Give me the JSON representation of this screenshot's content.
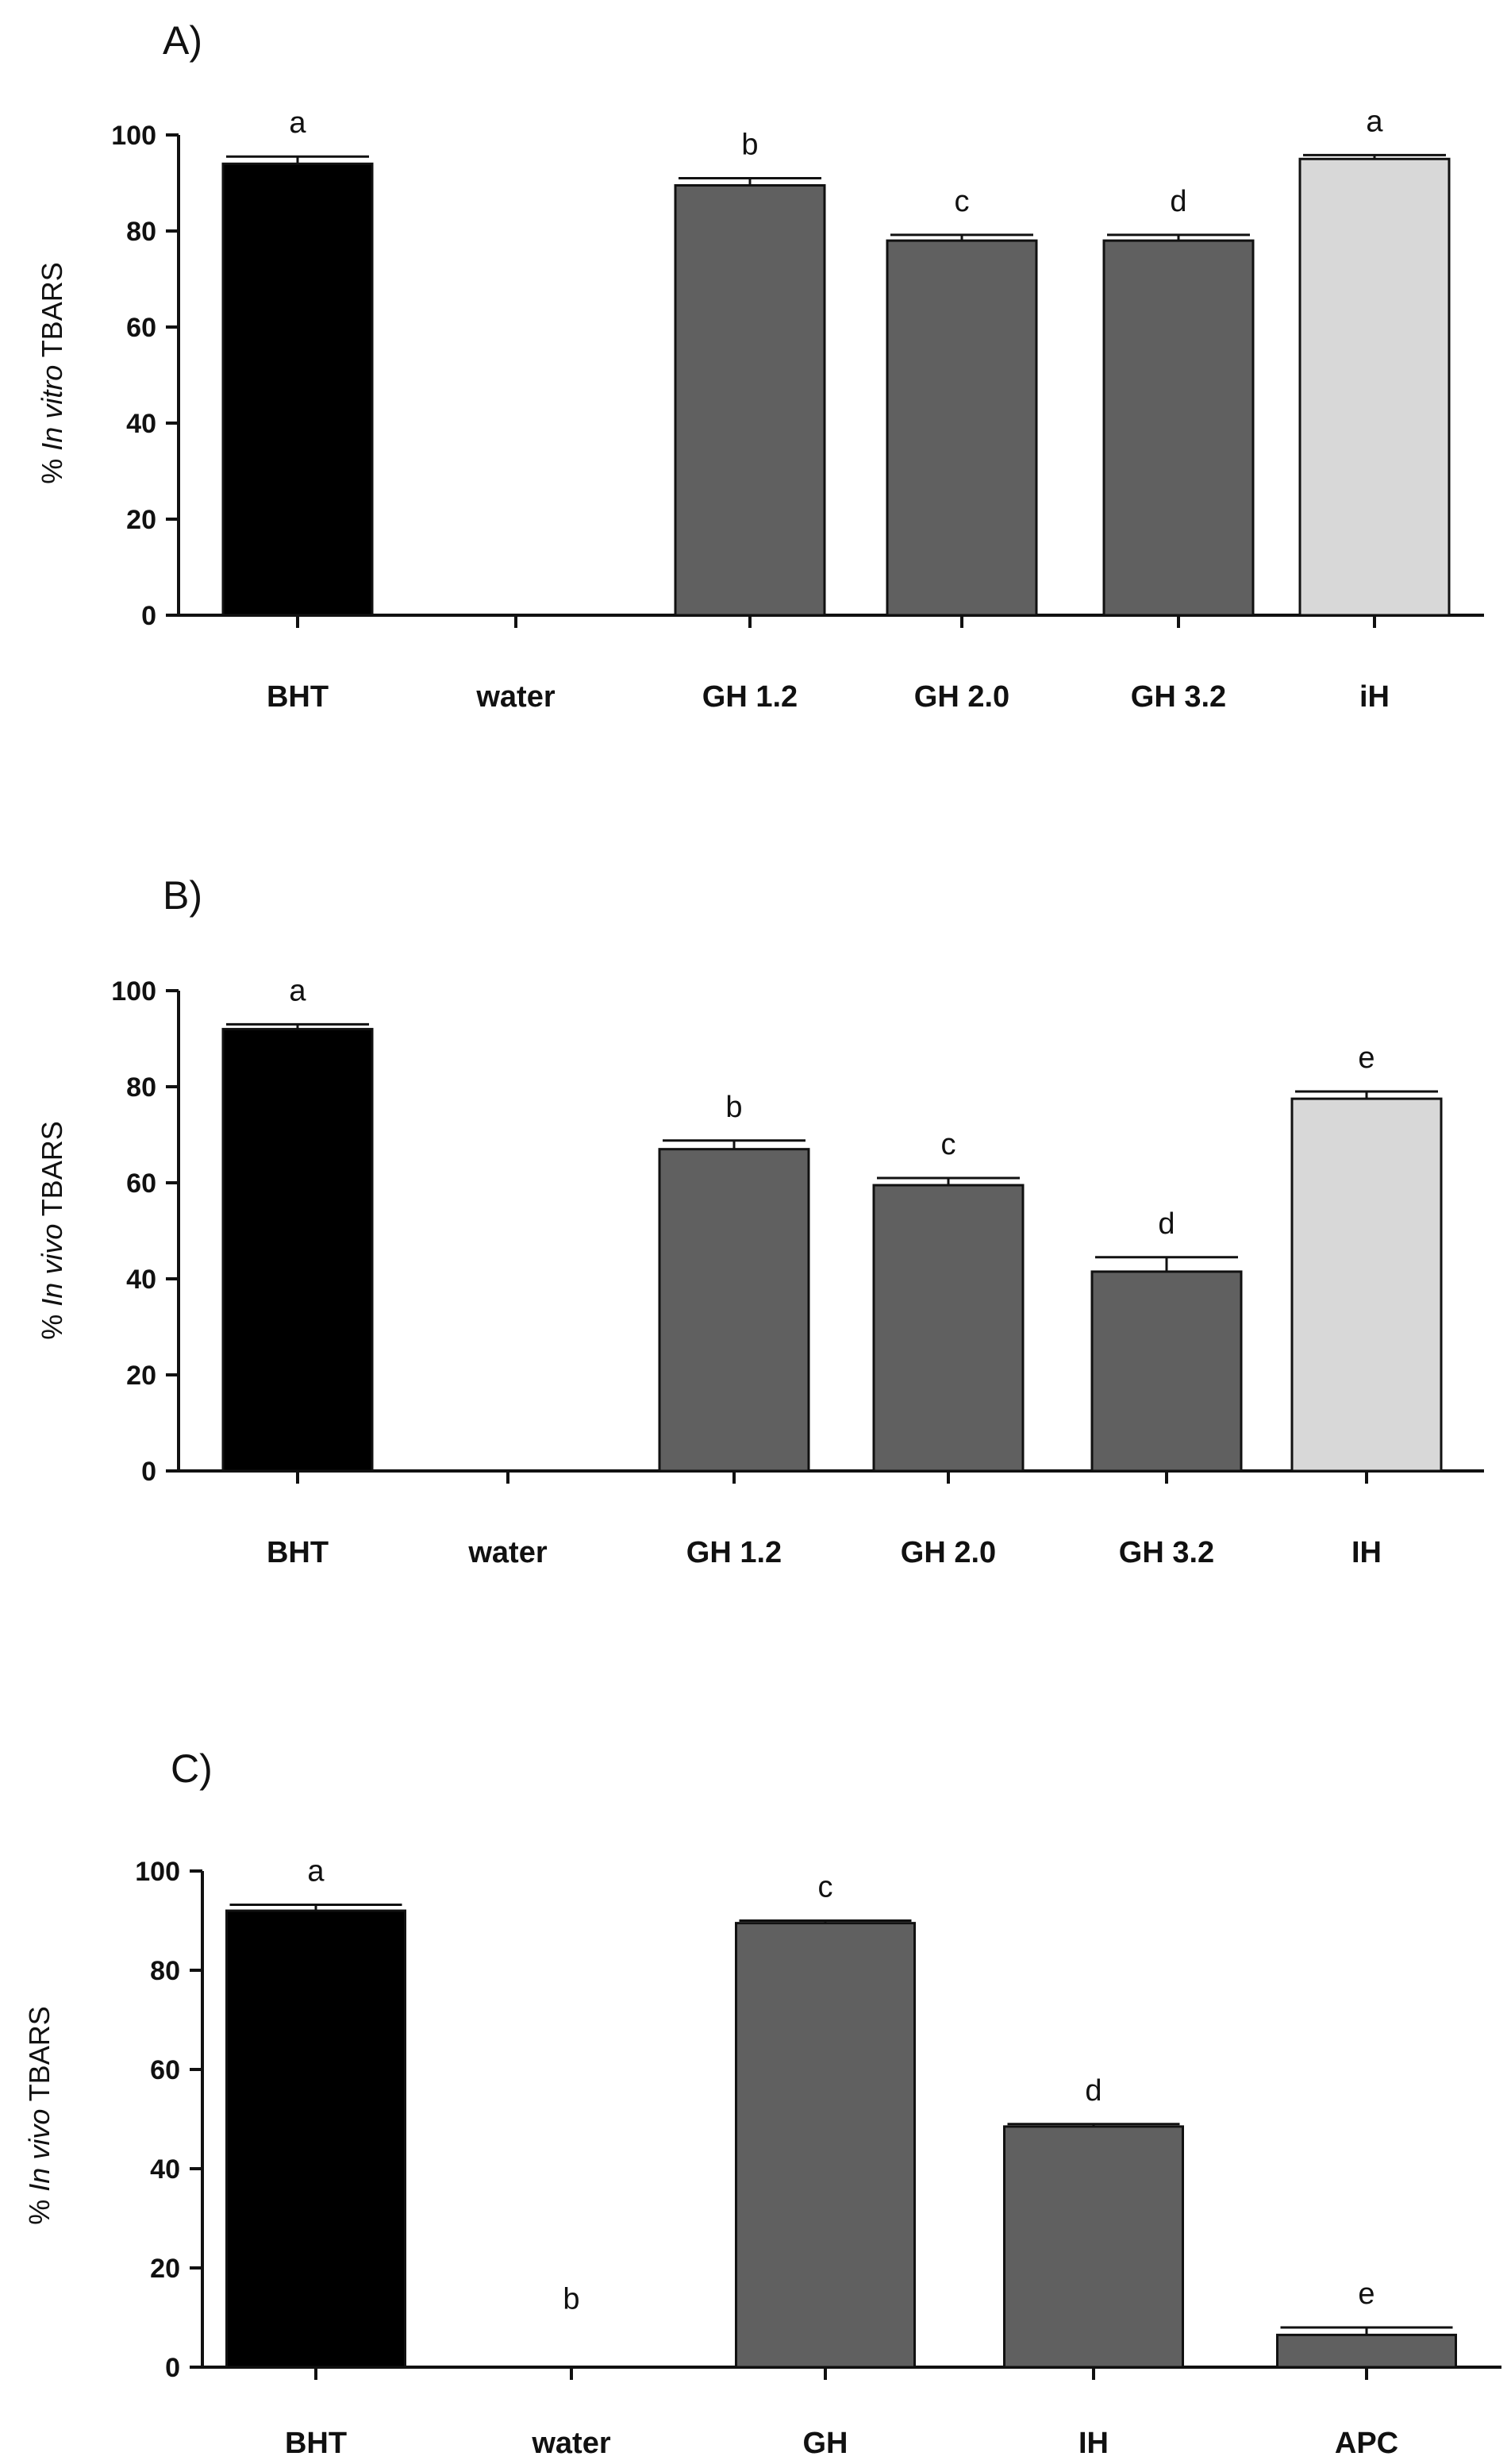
{
  "chart_data": [
    {
      "panel": "A)",
      "type": "bar",
      "categories": [
        "BHT",
        "water",
        "GH 1.2",
        "GH 2.0",
        "GH 3.2",
        "iH"
      ],
      "values": [
        94,
        0,
        89.5,
        78,
        78,
        95
      ],
      "errors": [
        1.5,
        0,
        1.5,
        1.2,
        1.2,
        0.8
      ],
      "significance": [
        "a",
        "",
        "b",
        "c",
        "d",
        "a"
      ],
      "bar_colors": [
        "#000000",
        "#000000",
        "#606060",
        "#606060",
        "#606060",
        "#d8d8d8"
      ],
      "ylabel_prefix": "% ",
      "ylabel_italic": "In vitro",
      "ylabel_suffix": " TBARS",
      "ylim": [
        0,
        100
      ],
      "yticks": [
        "0",
        "20",
        "40",
        "60",
        "80",
        "100"
      ]
    },
    {
      "panel": "B)",
      "type": "bar",
      "categories": [
        "BHT",
        "water",
        "GH 1.2",
        "GH 2.0",
        "GH 3.2",
        "IH"
      ],
      "values": [
        92,
        0,
        67,
        59.5,
        41.5,
        77.5
      ],
      "errors": [
        1.0,
        0,
        1.8,
        1.5,
        3.0,
        1.5
      ],
      "significance": [
        "a",
        "",
        "b",
        "c",
        "d",
        "e"
      ],
      "bar_colors": [
        "#000000",
        "#000000",
        "#606060",
        "#606060",
        "#606060",
        "#d8d8d8"
      ],
      "ylabel_prefix": "% ",
      "ylabel_italic": "In vivo",
      "ylabel_suffix": " TBARS",
      "ylim": [
        0,
        100
      ],
      "yticks": [
        "0",
        "20",
        "40",
        "60",
        "80",
        "100"
      ]
    },
    {
      "panel": "C)",
      "type": "bar",
      "categories": [
        "BHT",
        "water",
        "GH",
        "IH",
        "APC"
      ],
      "values": [
        92,
        0,
        89.5,
        48.5,
        6.5
      ],
      "errors": [
        1.2,
        0,
        0.5,
        0.5,
        1.5
      ],
      "significance": [
        "a",
        "b",
        "c",
        "d",
        "e"
      ],
      "bar_colors": [
        "#000000",
        "#000000",
        "#606060",
        "#606060",
        "#606060"
      ],
      "ylabel_prefix": "% ",
      "ylabel_italic": "In vivo",
      "ylabel_suffix": " TBARS",
      "ylim": [
        0,
        100
      ],
      "yticks": [
        "0",
        "20",
        "40",
        "60",
        "80",
        "100"
      ]
    }
  ]
}
